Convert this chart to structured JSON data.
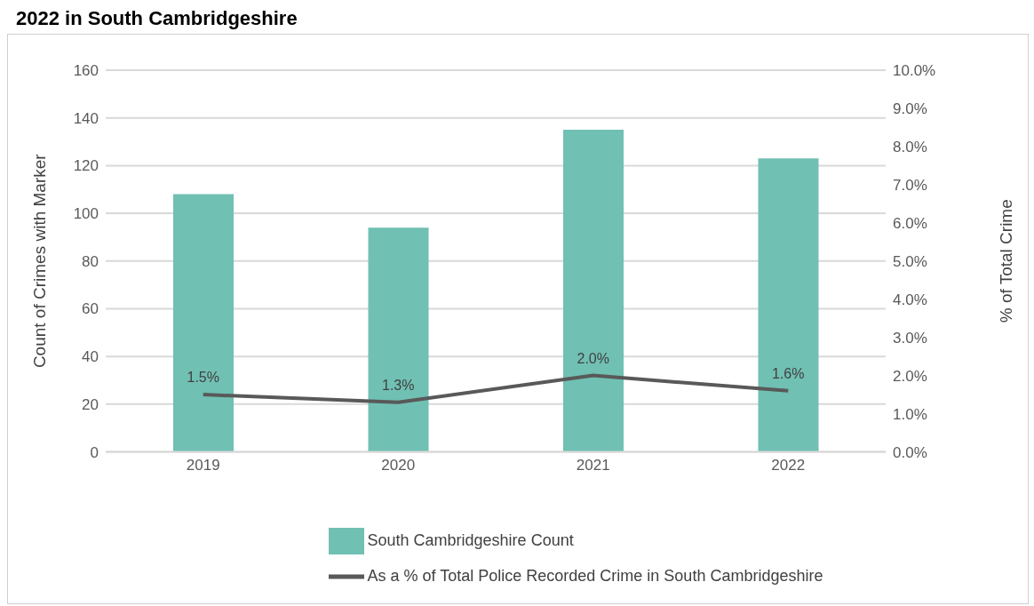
{
  "chart_data": {
    "type": "bar",
    "title": "2022 in South Cambridgeshire",
    "ylabel": "Count of Crimes with Marker",
    "y2label": "% of Total Crime",
    "categories": [
      "2019",
      "2020",
      "2021",
      "2022"
    ],
    "series": [
      {
        "name": "South Cambridgeshire Count",
        "color": "#70c0b3",
        "values": [
          108,
          94,
          135,
          123
        ]
      },
      {
        "name": "As a % of Total Police Recorded Crime in South Cambridgeshire",
        "type": "line",
        "axis": "y2",
        "color": "#595959",
        "values": [
          1.5,
          1.3,
          2.0,
          1.6
        ],
        "value_labels": [
          "1.5%",
          "1.3%",
          "2.0%",
          "1.6%"
        ],
        "marker": "none",
        "line_style": "solid"
      }
    ],
    "ylim": [
      0,
      160
    ],
    "yticks": [
      0,
      20,
      40,
      60,
      80,
      100,
      120,
      140,
      160
    ],
    "y2lim": [
      0,
      10
    ],
    "y2ticks": [
      {
        "value": 0,
        "label": "0.0%"
      },
      {
        "value": 1,
        "label": "1.0%"
      },
      {
        "value": 2,
        "label": "2.0%"
      },
      {
        "value": 3,
        "label": "3.0%"
      },
      {
        "value": 4,
        "label": "4.0%"
      },
      {
        "value": 5,
        "label": "5.0%"
      },
      {
        "value": 6,
        "label": "6.0%"
      },
      {
        "value": 7,
        "label": "7.0%"
      },
      {
        "value": 8,
        "label": "8.0%"
      },
      {
        "value": 9,
        "label": "9.0%"
      },
      {
        "value": 10,
        "label": "10.0%"
      }
    ],
    "grid": "y",
    "legend": "bottom"
  }
}
